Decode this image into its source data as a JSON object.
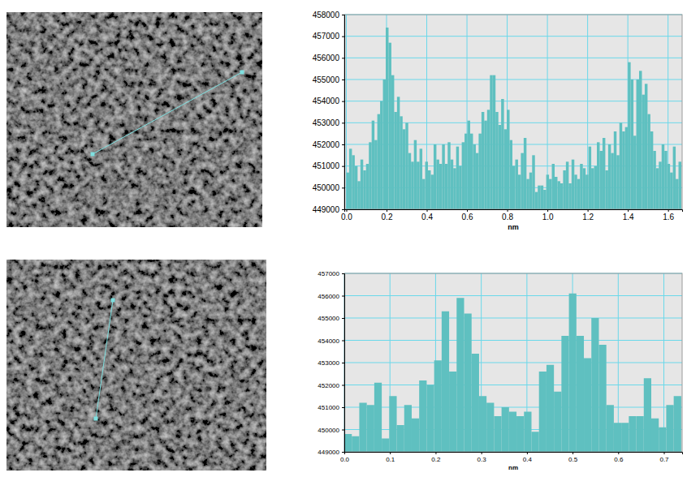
{
  "chart_data": [
    {
      "type": "histogram",
      "x_label": "nm",
      "color": "#5fc0c0",
      "grid": true,
      "xlim": [
        -0.01,
        1.67
      ],
      "ylim": [
        449000,
        458000
      ],
      "xticks": [
        {
          "value": 0,
          "label": "0.0"
        },
        {
          "value": 0.2,
          "label": "0.2"
        },
        {
          "value": 0.4,
          "label": "0.4"
        },
        {
          "value": 0.6,
          "label": "0.6"
        },
        {
          "value": 0.8,
          "label": "0.8"
        },
        {
          "value": 1,
          "label": "1.0"
        },
        {
          "value": 1.2,
          "label": "1.2"
        },
        {
          "value": 1.4,
          "label": "1.4"
        },
        {
          "value": 1.6,
          "label": "1.6"
        }
      ],
      "yticks": [
        449000,
        450000,
        451000,
        452000,
        453000,
        454000,
        455000,
        456000,
        457000,
        458000
      ],
      "bins": [
        0,
        0.014,
        0.028,
        0.042,
        0.056,
        0.07,
        0.084,
        0.098,
        0.112,
        0.126,
        0.14,
        0.154,
        0.168,
        0.182,
        0.196,
        0.21,
        0.224,
        0.238,
        0.252,
        0.266,
        0.28,
        0.294,
        0.308,
        0.322,
        0.336,
        0.35,
        0.364,
        0.378,
        0.392,
        0.406,
        0.42,
        0.434,
        0.448,
        0.462,
        0.476,
        0.49,
        0.504,
        0.518,
        0.532,
        0.546,
        0.56,
        0.574,
        0.588,
        0.602,
        0.616,
        0.63,
        0.644,
        0.658,
        0.672,
        0.686,
        0.7,
        0.714,
        0.728,
        0.742,
        0.756,
        0.77,
        0.784,
        0.798,
        0.812,
        0.826,
        0.84,
        0.854,
        0.868,
        0.882,
        0.896,
        0.91,
        0.924,
        0.938,
        0.952,
        0.966,
        0.98,
        0.994,
        1.008,
        1.022,
        1.036,
        1.05,
        1.064,
        1.078,
        1.092,
        1.106,
        1.12,
        1.134,
        1.148,
        1.162,
        1.176,
        1.19,
        1.204,
        1.218,
        1.232,
        1.246,
        1.26,
        1.274,
        1.288,
        1.302,
        1.316,
        1.33,
        1.344,
        1.358,
        1.372,
        1.386,
        1.4,
        1.414,
        1.428,
        1.442,
        1.456,
        1.47,
        1.484,
        1.498,
        1.512,
        1.526,
        1.54,
        1.554,
        1.568,
        1.582,
        1.596,
        1.61,
        1.624,
        1.638,
        1.652,
        1.666
      ],
      "values": [
        450700,
        451800,
        451500,
        451000,
        450300,
        451300,
        450800,
        451100,
        452100,
        453100,
        452200,
        453400,
        454000,
        455000,
        457400,
        456700,
        455200,
        453500,
        454200,
        453300,
        452700,
        453000,
        451600,
        451200,
        452200,
        451200,
        451800,
        450400,
        451200,
        450800,
        450600,
        452000,
        451300,
        451100,
        452000,
        451100,
        452100,
        451300,
        450900,
        451900,
        451000,
        452100,
        452500,
        453100,
        452500,
        452000,
        451600,
        452500,
        453500,
        453100,
        453600,
        455200,
        455200,
        453500,
        452900,
        454100,
        452700,
        453600,
        452200,
        451000,
        451300,
        450600,
        451600,
        452300,
        450400,
        450700,
        451500,
        449800,
        450100,
        450100,
        449900,
        450600,
        450400,
        451100,
        450500,
        450300,
        450200,
        450800,
        451200,
        450200,
        451300,
        450600,
        450400,
        451100,
        450900,
        450600,
        451900,
        450900,
        451000,
        452100,
        451700,
        452300,
        450800,
        452000,
        451600,
        452600,
        451500,
        453000,
        452600,
        452800,
        455800,
        455000,
        452400,
        455000,
        455400,
        454300,
        454800,
        453400,
        452600,
        451700,
        450900,
        451200,
        452000,
        451700,
        451100,
        450700,
        451900,
        450400,
        451200
      ]
    },
    {
      "type": "histogram",
      "x_label": "nm",
      "color": "#5fc0c0",
      "grid": true,
      "xlim": [
        0,
        0.74
      ],
      "ylim": [
        449000,
        457000
      ],
      "xticks": [
        {
          "value": 0,
          "label": "0.0"
        },
        {
          "value": 0.1,
          "label": "0.1"
        },
        {
          "value": 0.2,
          "label": "0.2"
        },
        {
          "value": 0.3,
          "label": "0.3"
        },
        {
          "value": 0.4,
          "label": "0.4"
        },
        {
          "value": 0.5,
          "label": "0.5"
        },
        {
          "value": 0.6,
          "label": "0.6"
        },
        {
          "value": 0.7,
          "label": "0.7"
        }
      ],
      "yticks": [
        449000,
        450000,
        451000,
        452000,
        453000,
        454000,
        455000,
        456000,
        457000
      ],
      "bins": [
        0,
        0.0164,
        0.0328,
        0.0492,
        0.0656,
        0.082,
        0.0984,
        0.1148,
        0.1312,
        0.1476,
        0.164,
        0.1804,
        0.1968,
        0.2132,
        0.2296,
        0.246,
        0.2624,
        0.2788,
        0.2952,
        0.3116,
        0.328,
        0.3444,
        0.3608,
        0.3772,
        0.3936,
        0.41,
        0.4264,
        0.4428,
        0.4592,
        0.4756,
        0.492,
        0.5084,
        0.5248,
        0.5412,
        0.5576,
        0.574,
        0.5904,
        0.6068,
        0.6232,
        0.6396,
        0.656,
        0.6724,
        0.6888,
        0.7052,
        0.7216,
        0.738
      ],
      "values": [
        449800,
        449700,
        451200,
        451100,
        452100,
        449600,
        451500,
        450200,
        451100,
        450500,
        452200,
        452000,
        453100,
        455300,
        452600,
        455900,
        455200,
        453400,
        451500,
        451200,
        450600,
        451000,
        450800,
        450600,
        450800,
        449900,
        452600,
        452900,
        451700,
        454200,
        456100,
        454200,
        453200,
        455000,
        453800,
        451100,
        450300,
        450300,
        450600,
        450600,
        452300,
        450500,
        450100,
        451100,
        451500
      ]
    }
  ]
}
